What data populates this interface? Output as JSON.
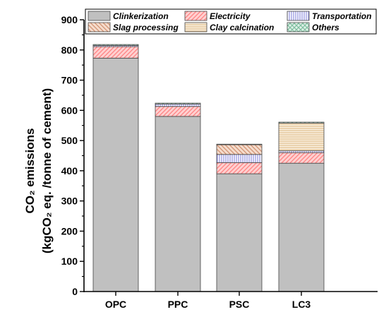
{
  "chart_data": {
    "type": "bar",
    "stacked": true,
    "categories": [
      "OPC",
      "PPC",
      "PSC",
      "LC3"
    ],
    "series": [
      {
        "name": "Clinkerization",
        "values": [
          773,
          580,
          390,
          425
        ],
        "color": "#c0c0c0",
        "pattern": "solid"
      },
      {
        "name": "Electricity",
        "values": [
          38,
          33,
          37,
          35
        ],
        "color": "#ff8080",
        "pattern": "diagonal-back"
      },
      {
        "name": "Transportation",
        "values": [
          4,
          8,
          27,
          6
        ],
        "color": "#9090e0",
        "pattern": "vertical"
      },
      {
        "name": "Slag processing",
        "values": [
          0,
          0,
          32,
          0
        ],
        "color": "#d09070",
        "pattern": "diagonal-forward"
      },
      {
        "name": "Clay calcination",
        "values": [
          0,
          0,
          0,
          92
        ],
        "color": "#e0c090",
        "pattern": "horizontal"
      },
      {
        "name": "Others",
        "values": [
          3,
          3,
          2,
          3
        ],
        "color": "#80c0a0",
        "pattern": "crosshatch"
      }
    ],
    "ylim": [
      0,
      900
    ],
    "yticks": [
      "0",
      "100",
      "200",
      "300",
      "400",
      "500",
      "600",
      "700",
      "800",
      "900"
    ],
    "ylabel_line1": "CO₂ emissions",
    "ylabel_line2": "(kgCO₂ eq. /tonne of cement)",
    "xlabel": "",
    "legend_position": "top",
    "grid": false
  }
}
